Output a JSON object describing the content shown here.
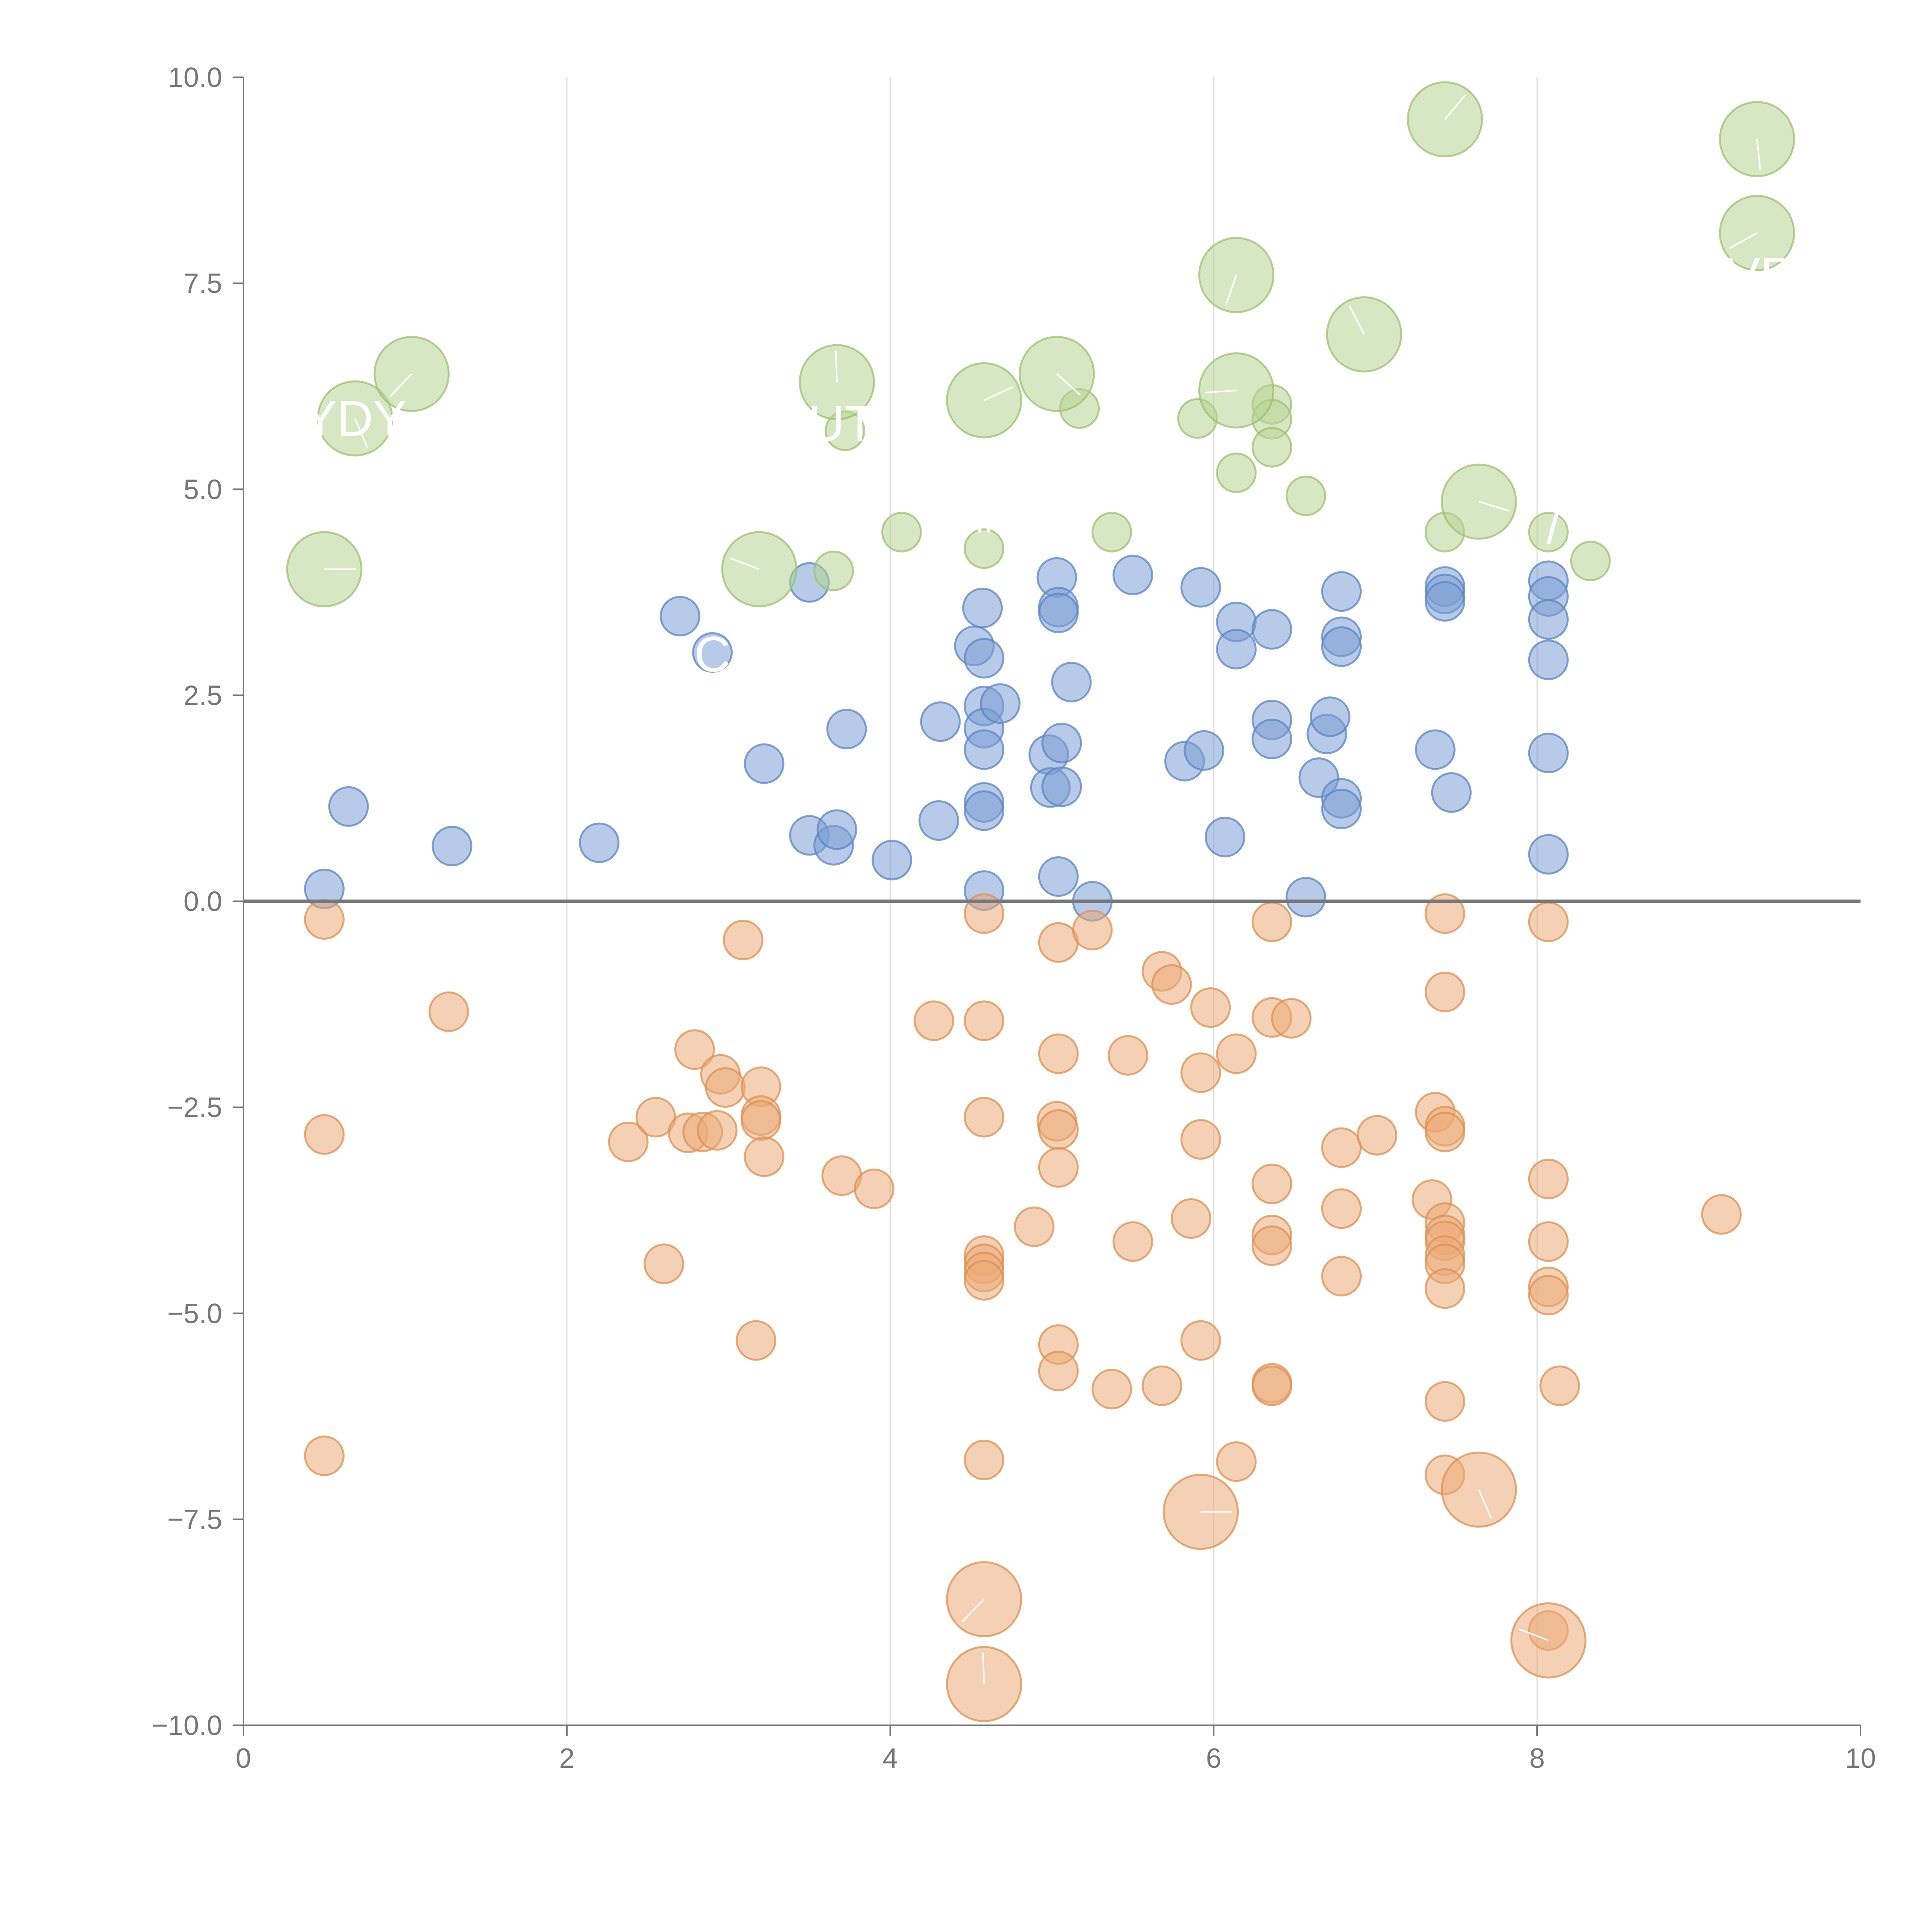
{
  "chart_data": {
    "type": "scatter",
    "title": "",
    "xlabel": "",
    "ylabel": "",
    "xlim": [
      0,
      10
    ],
    "ylim": [
      -10,
      10
    ],
    "grid": "vertical",
    "x_ticks": [
      0,
      2,
      4,
      6,
      8,
      10
    ],
    "x_tick_labels": [
      "0",
      "2",
      "4",
      "6",
      "8",
      "10"
    ],
    "y_ticks": [
      -10,
      -7.5,
      -5,
      -2.5,
      0,
      2.5,
      5,
      7.5,
      10
    ],
    "y_tick_labels": [
      "−10.0",
      "−7.5",
      "−5.0",
      "−2.5",
      "0.0",
      "2.5",
      "5.0",
      "7.5",
      "10.0"
    ],
    "reference_line_y": 0,
    "series": [
      {
        "name": "blue",
        "color": "#7b9fd4",
        "stroke": "#5a84c4",
        "points": [
          [
            0.5,
            0.15
          ],
          [
            0.65,
            1.15
          ],
          [
            1.29,
            0.67
          ],
          [
            2.2,
            0.71
          ],
          [
            2.7,
            3.46
          ],
          [
            2.9,
            3.02
          ],
          [
            3.22,
            1.67
          ],
          [
            3.5,
            3.87
          ],
          [
            3.5,
            0.8
          ],
          [
            3.65,
            0.68
          ],
          [
            3.67,
            0.87
          ],
          [
            3.73,
            2.09
          ],
          [
            4.01,
            0.5
          ],
          [
            4.3,
            0.98
          ],
          [
            4.31,
            2.18
          ],
          [
            4.52,
            3.1
          ],
          [
            4.57,
            3.56
          ],
          [
            4.58,
            2.95
          ],
          [
            4.58,
            2.37
          ],
          [
            4.58,
            2.1
          ],
          [
            4.58,
            1.84
          ],
          [
            4.58,
            1.2
          ],
          [
            4.58,
            1.1
          ],
          [
            4.58,
            0.13
          ],
          [
            4.68,
            2.4
          ],
          [
            4.98,
            1.78
          ],
          [
            4.99,
            1.38
          ],
          [
            5.03,
            3.93
          ],
          [
            5.04,
            3.57
          ],
          [
            5.04,
            3.5
          ],
          [
            5.06,
            1.92
          ],
          [
            5.06,
            1.39
          ],
          [
            5.04,
            0.3
          ],
          [
            5.12,
            2.66
          ],
          [
            5.25,
            0.0
          ],
          [
            5.5,
            3.96
          ],
          [
            5.82,
            1.7
          ],
          [
            5.92,
            3.81
          ],
          [
            5.94,
            1.83
          ],
          [
            6.07,
            0.78
          ],
          [
            6.14,
            3.39
          ],
          [
            6.14,
            3.06
          ],
          [
            6.36,
            3.3
          ],
          [
            6.36,
            2.2
          ],
          [
            6.36,
            1.97
          ],
          [
            6.57,
            0.05
          ],
          [
            6.65,
            1.5
          ],
          [
            6.7,
            2.03
          ],
          [
            6.72,
            2.24
          ],
          [
            6.79,
            3.76
          ],
          [
            6.79,
            3.21
          ],
          [
            6.79,
            3.09
          ],
          [
            6.79,
            1.25
          ],
          [
            6.79,
            1.12
          ],
          [
            7.37,
            1.84
          ],
          [
            7.43,
            3.82
          ],
          [
            7.43,
            3.73
          ],
          [
            7.43,
            3.64
          ],
          [
            7.47,
            1.32
          ],
          [
            8.07,
            3.89
          ],
          [
            8.07,
            3.7
          ],
          [
            8.07,
            3.42
          ],
          [
            8.07,
            2.93
          ],
          [
            8.07,
            1.8
          ],
          [
            8.07,
            0.57
          ]
        ]
      },
      {
        "name": "orange",
        "color": "#eba977",
        "stroke": "#dd9050",
        "points": [
          [
            0.5,
            -0.22
          ],
          [
            0.5,
            -2.83
          ],
          [
            0.5,
            -6.73
          ],
          [
            1.27,
            -1.34
          ],
          [
            2.38,
            -2.92
          ],
          [
            2.55,
            -2.62
          ],
          [
            2.6,
            -4.4
          ],
          [
            2.75,
            -2.81
          ],
          [
            2.79,
            -1.8
          ],
          [
            2.84,
            -2.8
          ],
          [
            2.93,
            -2.78
          ],
          [
            2.95,
            -2.1
          ],
          [
            2.98,
            -2.26
          ],
          [
            3.09,
            -0.47
          ],
          [
            3.17,
            -5.33
          ],
          [
            3.2,
            -2.25
          ],
          [
            3.2,
            -2.6
          ],
          [
            3.2,
            -2.66
          ],
          [
            3.22,
            -3.1
          ],
          [
            3.7,
            -3.33
          ],
          [
            3.9,
            -3.49
          ],
          [
            4.27,
            -1.45
          ],
          [
            4.58,
            -0.15
          ],
          [
            4.58,
            -1.45
          ],
          [
            4.58,
            -2.62
          ],
          [
            4.58,
            -4.3
          ],
          [
            4.58,
            -4.4
          ],
          [
            4.58,
            -4.5
          ],
          [
            4.58,
            -4.6
          ],
          [
            4.58,
            -6.78
          ],
          [
            4.89,
            -3.95
          ],
          [
            5.03,
            -2.67
          ],
          [
            5.04,
            -0.5
          ],
          [
            5.04,
            -1.85
          ],
          [
            5.04,
            -2.77
          ],
          [
            5.04,
            -3.23
          ],
          [
            5.04,
            -5.38
          ],
          [
            5.04,
            -5.7
          ],
          [
            5.25,
            -0.35
          ],
          [
            5.37,
            -5.92
          ],
          [
            5.47,
            -1.87
          ],
          [
            5.5,
            -4.13
          ],
          [
            5.68,
            -0.85
          ],
          [
            5.68,
            -5.88
          ],
          [
            5.74,
            -1.01
          ],
          [
            5.86,
            -3.85
          ],
          [
            5.92,
            -2.08
          ],
          [
            5.92,
            -2.89
          ],
          [
            5.92,
            -5.33
          ],
          [
            5.98,
            -1.29
          ],
          [
            6.14,
            -1.85
          ],
          [
            6.14,
            -6.8
          ],
          [
            6.36,
            -0.25
          ],
          [
            6.36,
            -1.41
          ],
          [
            6.36,
            -3.43
          ],
          [
            6.36,
            -4.05
          ],
          [
            6.36,
            -4.18
          ],
          [
            6.36,
            -5.85
          ],
          [
            6.36,
            -5.88
          ],
          [
            6.48,
            -1.42
          ],
          [
            6.79,
            -2.99
          ],
          [
            6.79,
            -3.73
          ],
          [
            6.79,
            -4.55
          ],
          [
            7.01,
            -2.84
          ],
          [
            7.35,
            -3.62
          ],
          [
            7.37,
            -2.56
          ],
          [
            7.43,
            -0.15
          ],
          [
            7.43,
            -1.1
          ],
          [
            7.43,
            -2.73
          ],
          [
            7.43,
            -2.8
          ],
          [
            7.43,
            -3.9
          ],
          [
            7.43,
            -4.05
          ],
          [
            7.43,
            -4.12
          ],
          [
            7.43,
            -4.3
          ],
          [
            7.43,
            -4.4
          ],
          [
            7.43,
            -4.7
          ],
          [
            7.43,
            -6.07
          ],
          [
            7.43,
            -6.96
          ],
          [
            8.07,
            -0.25
          ],
          [
            8.07,
            -3.37
          ],
          [
            8.07,
            -4.13
          ],
          [
            8.07,
            -4.68
          ],
          [
            8.07,
            -4.78
          ],
          [
            8.07,
            -8.85
          ],
          [
            8.14,
            -5.88
          ],
          [
            9.14,
            -3.8
          ]
        ],
        "large_points": [
          [
            5.92,
            -7.41
          ],
          [
            7.64,
            -7.14
          ],
          [
            4.58,
            -8.47
          ],
          [
            8.07,
            -8.97
          ],
          [
            4.58,
            -9.5
          ]
        ]
      },
      {
        "name": "green",
        "color": "#b7d394",
        "stroke": "#9dc06f",
        "points": [
          [
            3.65,
            4.01
          ],
          [
            3.72,
            5.71
          ],
          [
            4.07,
            4.48
          ],
          [
            4.58,
            4.28
          ],
          [
            5.17,
            5.98
          ],
          [
            5.37,
            4.48
          ],
          [
            5.9,
            5.86
          ],
          [
            6.14,
            5.2
          ],
          [
            6.36,
            6.03
          ],
          [
            6.36,
            5.85
          ],
          [
            6.36,
            5.51
          ],
          [
            6.57,
            4.92
          ],
          [
            7.43,
            4.48
          ],
          [
            8.07,
            4.48
          ],
          [
            8.33,
            4.13
          ]
        ],
        "large_points": [
          [
            0.5,
            4.03
          ],
          [
            0.69,
            5.86
          ],
          [
            1.04,
            6.4
          ],
          [
            3.19,
            4.03
          ],
          [
            3.67,
            6.3
          ],
          [
            4.58,
            6.08
          ],
          [
            5.03,
            6.4
          ],
          [
            6.14,
            7.6
          ],
          [
            6.14,
            6.2
          ],
          [
            6.93,
            6.88
          ],
          [
            7.43,
            9.49
          ],
          [
            7.64,
            4.85
          ],
          [
            9.36,
            9.25
          ],
          [
            9.36,
            8.11
          ]
        ]
      }
    ],
    "annotations": [
      {
        "text": "YDY",
        "x": 0.69,
        "y": 5.86
      },
      {
        "text": "C",
        "x": 2.9,
        "y": 3.0
      },
      {
        "text": "UT",
        "x": 3.7,
        "y": 5.8
      },
      {
        "text": "\"",
        "x": 4.58,
        "y": 4.4
      },
      {
        "text": "\"",
        "x": 4.58,
        "y": -8.0
      },
      {
        "text": "/",
        "x": 8.1,
        "y": 4.55
      },
      {
        "text": "VP",
        "x": 9.38,
        "y": 7.6
      }
    ]
  }
}
